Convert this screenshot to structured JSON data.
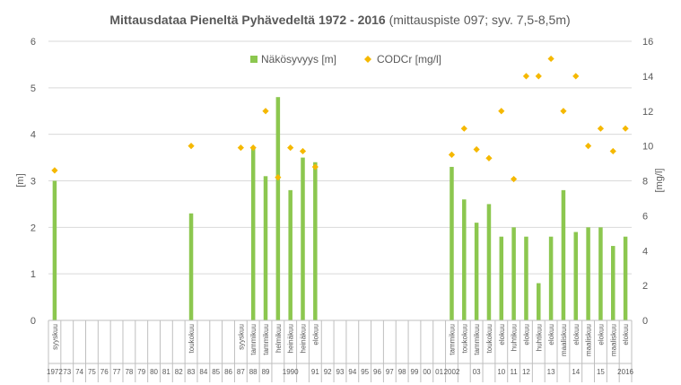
{
  "chart_data": {
    "type": "bar+scatter",
    "title_bold": "Mittausdataa Pieneltä Pyhävedeltä 1972 - 2016",
    "title_rest": " (mittauspiste 097; syv. 7,5-8,5m)",
    "ylabel_left": "[m]",
    "ylabel_right": "[mg/l]",
    "left_ylim": [
      0,
      6
    ],
    "left_ticks": [
      0,
      1,
      2,
      3,
      4,
      5,
      6
    ],
    "right_ylim": [
      0,
      16
    ],
    "right_ticks": [
      0,
      2,
      4,
      6,
      8,
      10,
      12,
      14,
      16
    ],
    "grid": true,
    "legend_position": "top-center",
    "series_names": {
      "bar": "Näkösyvyys [m]",
      "point": "CODCr [mg/l]"
    },
    "colors": {
      "bar": "#8cc74f",
      "point": "#f5b800",
      "grid": "#d9d9d9",
      "axis": "#bfbfbf",
      "text": "#595959"
    },
    "slots": [
      {
        "year": "1972",
        "month": "syyskuu",
        "secchi": 3.0,
        "cod": 8.6
      },
      {
        "year": "73",
        "month": "",
        "secchi": null,
        "cod": null
      },
      {
        "year": "74",
        "month": "",
        "secchi": null,
        "cod": null
      },
      {
        "year": "75",
        "month": "",
        "secchi": null,
        "cod": null
      },
      {
        "year": "76",
        "month": "",
        "secchi": null,
        "cod": null
      },
      {
        "year": "77",
        "month": "",
        "secchi": null,
        "cod": null
      },
      {
        "year": "78",
        "month": "",
        "secchi": null,
        "cod": null
      },
      {
        "year": "79",
        "month": "",
        "secchi": null,
        "cod": null
      },
      {
        "year": "80",
        "month": "",
        "secchi": null,
        "cod": null
      },
      {
        "year": "81",
        "month": "",
        "secchi": null,
        "cod": null
      },
      {
        "year": "82",
        "month": "",
        "secchi": null,
        "cod": null
      },
      {
        "year": "83",
        "month": "toukokuu",
        "secchi": 2.3,
        "cod": 10.0
      },
      {
        "year": "84",
        "month": "",
        "secchi": null,
        "cod": null
      },
      {
        "year": "85",
        "month": "",
        "secchi": null,
        "cod": null
      },
      {
        "year": "86",
        "month": "",
        "secchi": null,
        "cod": null
      },
      {
        "year": "87",
        "month": "syyskuu",
        "secchi": null,
        "cod": 9.9
      },
      {
        "year": "88",
        "month": "tammikuu",
        "secchi": 3.7,
        "cod": 9.9
      },
      {
        "year": "89",
        "month": "tammikuu",
        "secchi": 3.1,
        "cod": 12.0
      },
      {
        "year": "",
        "month": "helmikuu",
        "secchi": 4.8,
        "cod": 8.2
      },
      {
        "year": "1990",
        "month": "heinäkuu",
        "secchi": 2.8,
        "cod": 9.9
      },
      {
        "year": "",
        "month": "heinäkuu",
        "secchi": 3.5,
        "cod": 9.7
      },
      {
        "year": "91",
        "month": "elokuu",
        "secchi": 3.4,
        "cod": 8.8
      },
      {
        "year": "92",
        "month": "",
        "secchi": null,
        "cod": null
      },
      {
        "year": "93",
        "month": "",
        "secchi": null,
        "cod": null
      },
      {
        "year": "94",
        "month": "",
        "secchi": null,
        "cod": null
      },
      {
        "year": "95",
        "month": "",
        "secchi": null,
        "cod": null
      },
      {
        "year": "96",
        "month": "",
        "secchi": null,
        "cod": null
      },
      {
        "year": "97",
        "month": "",
        "secchi": null,
        "cod": null
      },
      {
        "year": "98",
        "month": "",
        "secchi": null,
        "cod": null
      },
      {
        "year": "99",
        "month": "",
        "secchi": null,
        "cod": null
      },
      {
        "year": "00",
        "month": "",
        "secchi": null,
        "cod": null
      },
      {
        "year": "01",
        "month": "",
        "secchi": null,
        "cod": null
      },
      {
        "year": "2002",
        "month": "tammikuu",
        "secchi": 3.3,
        "cod": 9.5
      },
      {
        "year": "",
        "month": "toukokuu",
        "secchi": 2.6,
        "cod": 11.0
      },
      {
        "year": "03",
        "month": "tammikuu",
        "secchi": 2.1,
        "cod": 9.8
      },
      {
        "year": "",
        "month": "toukokuu",
        "secchi": 2.5,
        "cod": 9.3
      },
      {
        "year": "10",
        "month": "elokuu",
        "secchi": 1.8,
        "cod": 12.0
      },
      {
        "year": "11",
        "month": "huhtikuu",
        "secchi": 2.0,
        "cod": 8.1
      },
      {
        "year": "12",
        "month": "elokuu",
        "secchi": 1.8,
        "cod": 14.0
      },
      {
        "year": "",
        "month": "huhtikuu",
        "secchi": 0.8,
        "cod": 14.0
      },
      {
        "year": "13",
        "month": "elokuu",
        "secchi": 1.8,
        "cod": 15.0
      },
      {
        "year": "",
        "month": "maaliskuu",
        "secchi": 2.8,
        "cod": 12.0
      },
      {
        "year": "14",
        "month": "elokuu",
        "secchi": 1.9,
        "cod": 14.0
      },
      {
        "year": "",
        "month": "maaliskuu",
        "secchi": 2.0,
        "cod": 10.0
      },
      {
        "year": "15",
        "month": "elokuu",
        "secchi": 2.0,
        "cod": 11.0
      },
      {
        "year": "",
        "month": "maaliskuu",
        "secchi": 1.6,
        "cod": 9.7
      },
      {
        "year": "2016",
        "month": "elokuu",
        "secchi": 1.8,
        "cod": 11.0
      }
    ]
  }
}
